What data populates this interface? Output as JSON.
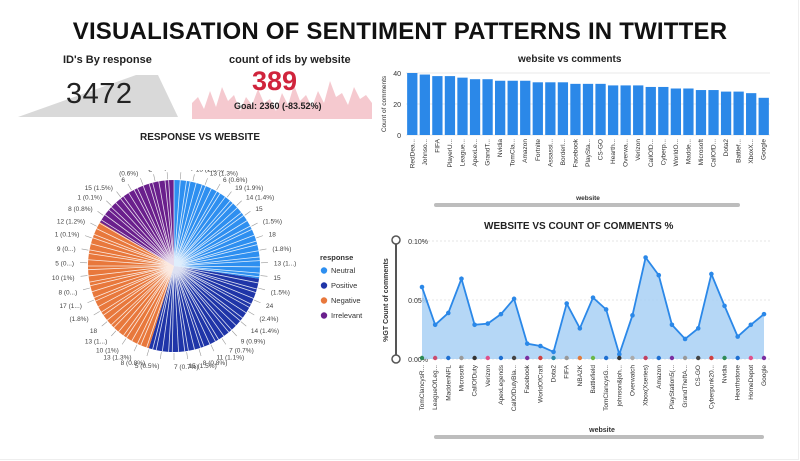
{
  "title": "VISUALISATION OF SENTIMENT PATTERNS IN TWITTER",
  "kpi1": {
    "label": "ID's By response",
    "value": "3472"
  },
  "kpi2": {
    "label": "count of ids by website",
    "value": "389",
    "goal": "Goal: 2360 (-83.52%)",
    "accent": "#d0243c"
  },
  "colors": {
    "neutral": "#2e8ff0",
    "positive": "#1f35a8",
    "negative": "#e8783c",
    "irrelevant": "#6a1f8c",
    "bar": "#2b88e8",
    "area": "#a8d0f5",
    "line": "#2b88e8"
  },
  "chart_data": [
    {
      "type": "pie",
      "title": "RESPONSE VS WEBSITE",
      "legend_title": "response",
      "legend_position": "right",
      "series": [
        {
          "name": "Neutral",
          "value": 950
        },
        {
          "name": "Positive",
          "value": 950
        },
        {
          "name": "Negative",
          "value": 1000
        },
        {
          "name": "Irrelevant",
          "value": 572
        }
      ],
      "labels": [
        "18 (1.8%)",
        "13 (1.3%)",
        "13 (1.3%)",
        "6 (0.6%)",
        "19 (1.9%)",
        "14 (1.4%)",
        "15",
        "(1.5%)",
        "18",
        "(1.8%)",
        "13 (1...)",
        "15",
        "(1.5%)",
        "24",
        "(2.4%)",
        "14 (1.4%)",
        "9 (0.9%)",
        "7 (0.7%)",
        "11 (1.1%)",
        "8 (0.8%)",
        "15 (1.5%)",
        "7 (0.7%)",
        "5 (0.5%)",
        "8 (0.8%)",
        "13 (1.3%)",
        "10 (1%)",
        "13 (1...)",
        "18",
        "(1.8%)",
        "17 (1...)",
        "8 (0...)",
        "10 (1%)",
        "5 (0...)",
        "9 (0...)",
        "1 (0.1%)",
        "12 (1.2%)",
        "8 (0.8%)",
        "1 (0.1%)",
        "15 (1.5%)",
        "6",
        "(0.6%)",
        "2",
        "(0.2%)"
      ]
    },
    {
      "type": "bar",
      "title": "website vs comments",
      "xlabel": "website",
      "ylabel": "Count of comments",
      "ylim": [
        0,
        40
      ],
      "yticks": [
        "0",
        "20",
        "40"
      ],
      "categories": [
        "RedDea...",
        "Johnso...",
        "FIFA",
        "PlayerU...",
        "League...",
        "ApexLe...",
        "GrandT...",
        "Nvidia",
        "TomCla...",
        "Amazon",
        "Fortnite",
        "Assassi...",
        "Borderl...",
        "Facebook",
        "PlaySta...",
        "CS-GO",
        "Hearth...",
        "Overwa...",
        "Verizon",
        "CallOfD...",
        "Cyberp...",
        "WorldO...",
        "Madde...",
        "Microsoft",
        "CallOfD...",
        "Dota2",
        "Battlef...",
        "XboxX...",
        "Google"
      ],
      "values": [
        40,
        39,
        38,
        38,
        37,
        36,
        36,
        35,
        35,
        35,
        34,
        34,
        34,
        33,
        33,
        33,
        32,
        32,
        32,
        31,
        31,
        30,
        30,
        29,
        29,
        28,
        28,
        27,
        24
      ]
    },
    {
      "type": "area",
      "title": "WEBSITE VS COUNT OF COMMENTS %",
      "xlabel": "website",
      "ylabel": "%GT Count of comments",
      "ylim": [
        0,
        0.1
      ],
      "yticks": [
        "0.00%",
        "0.05%",
        "0.10%"
      ],
      "categories": [
        "TomClancysR...",
        "LeagueOfLeg...",
        "MaddenNFL",
        "Microsoft",
        "CallOfDuty",
        "Verizon",
        "ApexLegends",
        "CallOfDutyBla...",
        "Facebook",
        "WorldOfCraft",
        "Dota2",
        "FIFA",
        "NBA2K",
        "Battlefield",
        "TomClancysG...",
        "johnson&joh...",
        "Overwatch",
        "Xbox(Xseries)",
        "Amazon",
        "PlayStation5(...",
        "GrandTheftA...",
        "CS-GO",
        "Cyberpunk20...",
        "Nvidia",
        "Hearthstone",
        "HomeDepot",
        "Google"
      ],
      "values": [
        0.061,
        0.029,
        0.039,
        0.068,
        0.029,
        0.03,
        0.038,
        0.051,
        0.013,
        0.011,
        0.006,
        0.047,
        0.026,
        0.052,
        0.042,
        0.004,
        0.037,
        0.086,
        0.071,
        0.029,
        0.017,
        0.026,
        0.072,
        0.045,
        0.019,
        0.029,
        0.038
      ]
    }
  ]
}
